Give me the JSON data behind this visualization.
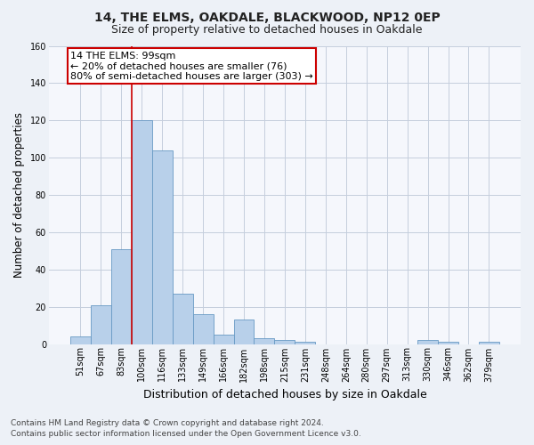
{
  "title1": "14, THE ELMS, OAKDALE, BLACKWOOD, NP12 0EP",
  "title2": "Size of property relative to detached houses in Oakdale",
  "xlabel": "Distribution of detached houses by size in Oakdale",
  "ylabel": "Number of detached properties",
  "footnote1": "Contains HM Land Registry data © Crown copyright and database right 2024.",
  "footnote2": "Contains public sector information licensed under the Open Government Licence v3.0.",
  "categories": [
    "51sqm",
    "67sqm",
    "83sqm",
    "100sqm",
    "116sqm",
    "133sqm",
    "149sqm",
    "166sqm",
    "182sqm",
    "198sqm",
    "215sqm",
    "231sqm",
    "248sqm",
    "264sqm",
    "280sqm",
    "297sqm",
    "313sqm",
    "330sqm",
    "346sqm",
    "362sqm",
    "379sqm"
  ],
  "values": [
    4,
    21,
    51,
    120,
    104,
    27,
    16,
    5,
    13,
    3,
    2,
    1,
    0,
    0,
    0,
    0,
    0,
    2,
    1,
    0,
    1
  ],
  "bar_color": "#b8d0ea",
  "bar_edge_color": "#6899c4",
  "property_line_x": 3,
  "annotation_line1": "14 THE ELMS: 99sqm",
  "annotation_line2": "← 20% of detached houses are smaller (76)",
  "annotation_line3": "80% of semi-detached houses are larger (303) →",
  "annotation_box_color": "#ffffff",
  "annotation_box_edge_color": "#cc0000",
  "ylim": [
    0,
    160
  ],
  "yticks": [
    0,
    20,
    40,
    60,
    80,
    100,
    120,
    140,
    160
  ],
  "bg_color": "#edf1f7",
  "plot_bg_color": "#f5f7fc",
  "grid_color": "#c5cedd",
  "title_fontsize": 10,
  "subtitle_fontsize": 9,
  "tick_fontsize": 7,
  "ylabel_fontsize": 8.5,
  "xlabel_fontsize": 9,
  "footnote_fontsize": 6.5,
  "ann_fontsize": 8
}
